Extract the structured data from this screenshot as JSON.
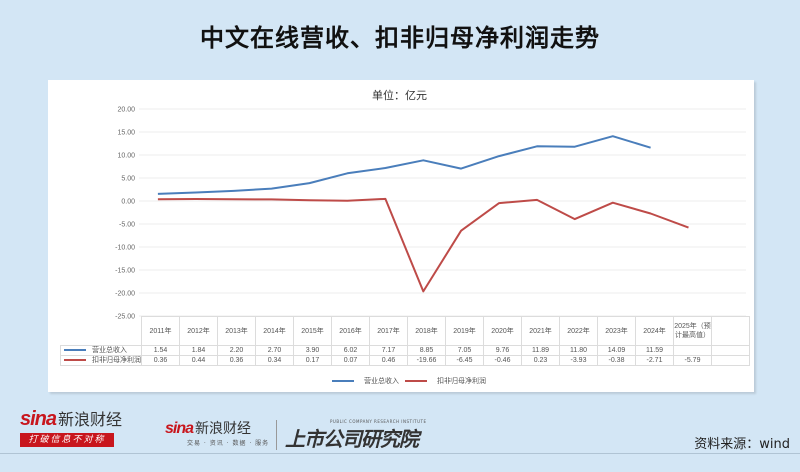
{
  "header": {
    "title": "中文在线营收、扣非归母净利润走势"
  },
  "chart": {
    "unit_label": "单位：亿元"
  },
  "chart_data": {
    "type": "line",
    "title": "单位：亿元",
    "xlabel": "",
    "ylabel": "",
    "ylim": [
      -25,
      20
    ],
    "yticks": [
      "20.00",
      "15.00",
      "10.00",
      "5.00",
      "0.00",
      "-5.00",
      "-10.00",
      "-15.00",
      "-20.00",
      "-25.00"
    ],
    "grid": true,
    "legend_position": "bottom",
    "categories": [
      "2011年",
      "2012年",
      "2013年",
      "2014年",
      "2015年",
      "2016年",
      "2017年",
      "2018年",
      "2019年",
      "2020年",
      "2021年",
      "2022年",
      "2023年",
      "2024年",
      "2025年（预计最高值）"
    ],
    "series": [
      {
        "name": "营业总收入",
        "color": "#4a7ebb",
        "values": [
          1.54,
          1.84,
          2.2,
          2.7,
          3.9,
          6.02,
          7.17,
          8.85,
          7.05,
          9.76,
          11.89,
          11.8,
          14.09,
          11.59,
          null
        ]
      },
      {
        "name": "扣非归母净利润",
        "color": "#be4b48",
        "values": [
          0.36,
          0.44,
          0.36,
          0.34,
          0.17,
          0.07,
          0.46,
          -19.66,
          -6.45,
          -0.46,
          0.23,
          -3.93,
          -0.38,
          -2.71,
          -5.79
        ]
      }
    ]
  },
  "table": {
    "headers": [
      "2011年",
      "2012年",
      "2013年",
      "2014年",
      "2015年",
      "2016年",
      "2017年",
      "2018年",
      "2019年",
      "2020年",
      "2021年",
      "2022年",
      "2023年",
      "2024年",
      "2025年（预计最高值）",
      ""
    ],
    "rows": [
      {
        "label": "营业总收入",
        "color": "#4a7ebb",
        "cells": [
          "1.54",
          "1.84",
          "2.20",
          "2.70",
          "3.90",
          "6.02",
          "7.17",
          "8.85",
          "7.05",
          "9.76",
          "11.89",
          "11.80",
          "14.09",
          "11.59",
          "",
          ""
        ]
      },
      {
        "label": "扣非归母净利润",
        "color": "#be4b48",
        "cells": [
          "0.36",
          "0.44",
          "0.36",
          "0.34",
          "0.17",
          "0.07",
          "0.46",
          "-19.66",
          "-6.45",
          "-0.46",
          "0.23",
          "-3.93",
          "-0.38",
          "-2.71",
          "-5.79",
          ""
        ]
      }
    ]
  },
  "legend": [
    {
      "label": "营业总收入",
      "color": "#4a7ebb"
    },
    {
      "label": "扣非归母净利润",
      "color": "#be4b48"
    }
  ],
  "footer": {
    "logo1": {
      "brand": "sina",
      "name": "新浪财经",
      "slogan": "打破信息不对称"
    },
    "logo2": {
      "brand": "sina",
      "name": "新浪财经",
      "sub": "交易 · 资讯 · 数据 · 服务"
    },
    "institute": {
      "name": "上市公司研究院",
      "en": "PUBLIC COMPANY RESEARCH INSTITUTE"
    },
    "source": "资料来源：wind"
  }
}
